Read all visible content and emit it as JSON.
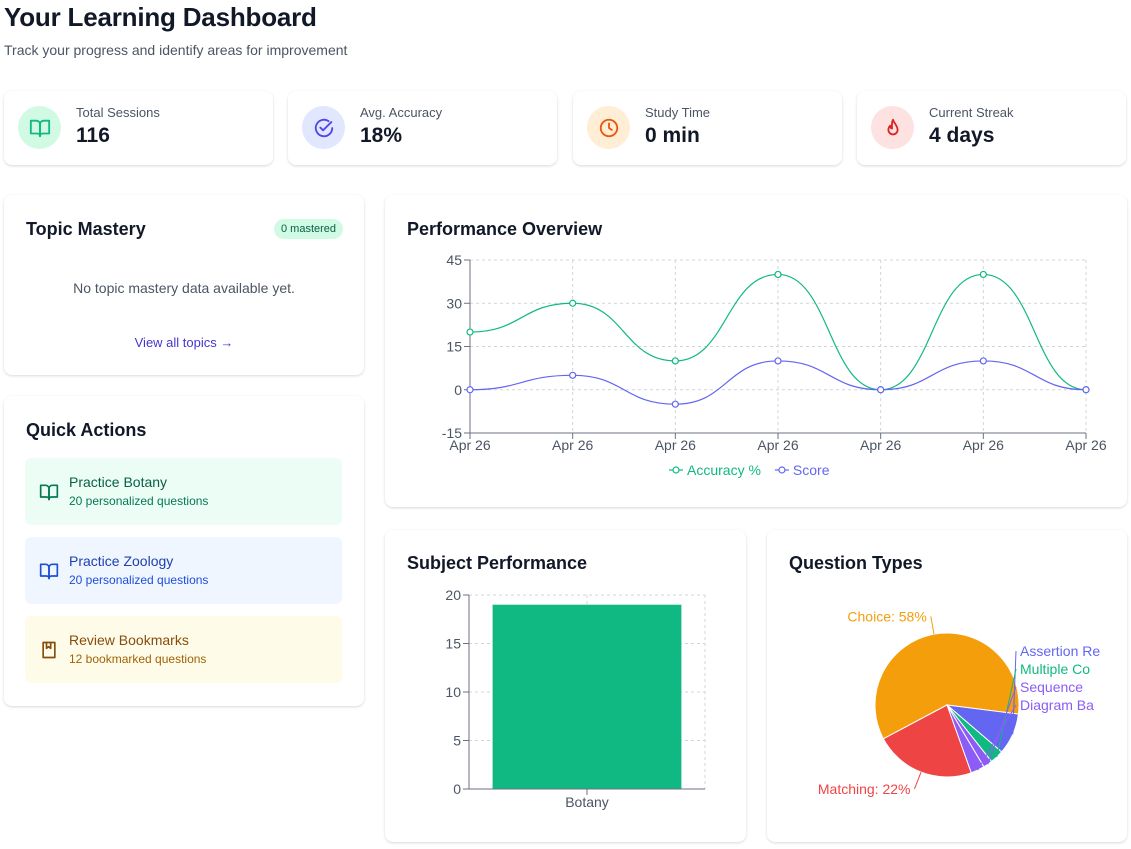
{
  "header": {
    "title": "Your Learning Dashboard",
    "subtitle": "Track your progress and identify areas for improvement"
  },
  "stats": [
    {
      "label": "Total Sessions",
      "value": "116",
      "icon": "book-open-icon",
      "color": "#10b981",
      "bg": "#d1fae5"
    },
    {
      "label": "Avg. Accuracy",
      "value": "18%",
      "icon": "check-circle-icon",
      "color": "#4f46e5",
      "bg": "#e0e7ff"
    },
    {
      "label": "Study Time",
      "value": "0 min",
      "icon": "clock-icon",
      "color": "#ea580c",
      "bg": "#ffedd5"
    },
    {
      "label": "Current Streak",
      "value": "4 days",
      "icon": "flame-icon",
      "color": "#dc2626",
      "bg": "#fee2e2"
    }
  ],
  "topic_mastery": {
    "title": "Topic Mastery",
    "badge": "0 mastered",
    "empty_text": "No topic mastery data available yet.",
    "link": "View all topics →"
  },
  "quick_actions": {
    "title": "Quick Actions",
    "items": [
      {
        "title": "Practice Botany",
        "subtitle": "20 personalized questions",
        "icon": "book-open-icon",
        "bg": "#ecfdf5",
        "fg": "#065f46"
      },
      {
        "title": "Practice Zoology",
        "subtitle": "20 personalized questions",
        "icon": "book-open-icon",
        "bg": "#eff6ff",
        "fg": "#1e40af"
      },
      {
        "title": "Review Bookmarks",
        "subtitle": "12 bookmarked questions",
        "icon": "bookmark-book-icon",
        "bg": "#fefce8",
        "fg": "#854d0e"
      }
    ]
  },
  "performance": {
    "title": "Performance Overview"
  },
  "subject_performance": {
    "title": "Subject Performance"
  },
  "question_types": {
    "title": "Question Types"
  },
  "chart_data": [
    {
      "type": "line",
      "x": [
        "Apr 26",
        "Apr 26",
        "Apr 26",
        "Apr 26",
        "Apr 26",
        "Apr 26",
        "Apr 26"
      ],
      "series": [
        {
          "name": "Accuracy %",
          "values": [
            20,
            30,
            10,
            40,
            0,
            40,
            0
          ],
          "color": "#10b981"
        },
        {
          "name": "Score",
          "values": [
            0,
            5,
            -5,
            10,
            0,
            10,
            0
          ],
          "color": "#6366f1"
        }
      ],
      "yticks": [
        45,
        30,
        15,
        0,
        -15
      ],
      "ylim": [
        -15,
        45
      ],
      "grid": true,
      "legend": "bottom"
    },
    {
      "type": "bar",
      "categories": [
        "Botany"
      ],
      "values": [
        19
      ],
      "yticks": [
        20,
        15,
        10,
        5,
        0
      ],
      "ylim": [
        0,
        20
      ],
      "color": "#10b981",
      "grid": true
    },
    {
      "type": "pie",
      "slices": [
        {
          "label": "Choice: 58%",
          "value": 58,
          "color": "#f59e0b"
        },
        {
          "label": "Assertion Re",
          "value": 9,
          "color": "#6366f1"
        },
        {
          "label": "Multiple Co",
          "value": 3,
          "color": "#10b981"
        },
        {
          "label": "Sequence",
          "value": 2,
          "color": "#8b5cf6"
        },
        {
          "label": "Diagram Ba",
          "value": 3,
          "color": "#8b5cf6"
        },
        {
          "label": "Matching: 22%",
          "value": 22,
          "color": "#ef4444"
        }
      ]
    }
  ]
}
